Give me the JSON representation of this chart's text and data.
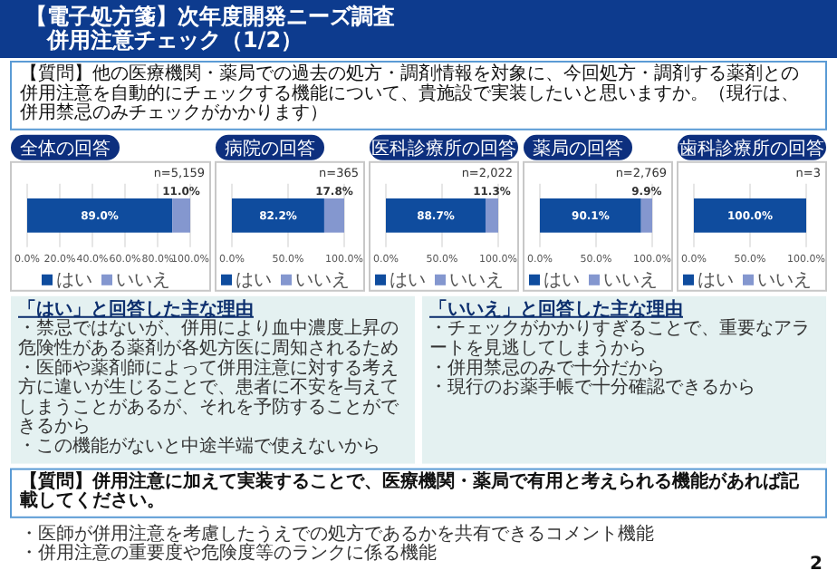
{
  "chart_data": [
    {
      "type": "other",
      "title": "【電子処方箋】次年度開発ニーズ調査",
      "subtitle": "併用注意チェック（1/2）",
      "annotations": [
        "【質問】他の医療機関・薬局での過去の処方・調剤情報を対象に、今回処方・調剤する薬剤との併用注意を自動的にチェックする機能について、貴施設で実装したいと思いますか。（現行は、併用禁忌のみチェックがかかります）"
      ]
    },
    {
      "type": "bar",
      "orientation": "horizontal",
      "stacked": true,
      "title": "全体の回答",
      "subtitle": "n=5,159",
      "categories": [
        null
      ],
      "xlim": [
        0,
        100
      ],
      "xticks": [
        {
          "value": 0,
          "label": "0.0%"
        },
        {
          "value": 20,
          "label": "20.0%"
        },
        {
          "value": 40,
          "label": "40.0%"
        },
        {
          "value": 60,
          "label": "60.0%"
        },
        {
          "value": 80,
          "label": "80.0%"
        },
        {
          "value": 100,
          "label": "100.0%"
        }
      ],
      "grid": "x",
      "legend": "bottom",
      "tick_labels": "x",
      "series": [
        {
          "name": "はい",
          "color": "#0f4c9e",
          "values": [
            89.0
          ],
          "value_labels": [
            "89.0%"
          ]
        },
        {
          "name": "いいえ",
          "color": "#8497cf",
          "values": [
            11.0
          ],
          "value_labels": [
            "11.0%"
          ]
        }
      ]
    },
    {
      "type": "bar",
      "orientation": "horizontal",
      "stacked": true,
      "title": "病院の回答",
      "subtitle": "n=365",
      "categories": [
        null
      ],
      "xlim": [
        0,
        100
      ],
      "xticks": [
        {
          "value": 0,
          "label": "0.0%"
        },
        {
          "value": 50,
          "label": "50.0%"
        },
        {
          "value": 100,
          "label": "100.0%"
        }
      ],
      "grid": "x",
      "legend": "bottom",
      "tick_labels": "x",
      "series": [
        {
          "name": "はい",
          "color": "#0f4c9e",
          "values": [
            82.2
          ],
          "value_labels": [
            "82.2%"
          ]
        },
        {
          "name": "いいえ",
          "color": "#8497cf",
          "values": [
            17.8
          ],
          "value_labels": [
            "17.8%"
          ]
        }
      ]
    },
    {
      "type": "bar",
      "orientation": "horizontal",
      "stacked": true,
      "title": "医科診療所の回答",
      "subtitle": "n=2,022",
      "categories": [
        null
      ],
      "xlim": [
        0,
        100
      ],
      "xticks": [
        {
          "value": 0,
          "label": "0.0%"
        },
        {
          "value": 50,
          "label": "50.0%"
        },
        {
          "value": 100,
          "label": "100.0%"
        }
      ],
      "grid": "x",
      "legend": "bottom",
      "tick_labels": "x",
      "series": [
        {
          "name": "はい",
          "color": "#0f4c9e",
          "values": [
            88.7
          ],
          "value_labels": [
            "88.7%"
          ]
        },
        {
          "name": "いいえ",
          "color": "#8497cf",
          "values": [
            11.3
          ],
          "value_labels": [
            "11.3%"
          ]
        }
      ]
    },
    {
      "type": "bar",
      "orientation": "horizontal",
      "stacked": true,
      "title": "薬局の回答",
      "subtitle": "n=2,769",
      "categories": [
        null
      ],
      "xlim": [
        0,
        100
      ],
      "xticks": [
        {
          "value": 0,
          "label": "0.0%"
        },
        {
          "value": 50,
          "label": "50.0%"
        },
        {
          "value": 100,
          "label": "100.0%"
        }
      ],
      "grid": "x",
      "legend": "bottom",
      "tick_labels": "x",
      "series": [
        {
          "name": "はい",
          "color": "#0f4c9e",
          "values": [
            90.1
          ],
          "value_labels": [
            "90.1%"
          ]
        },
        {
          "name": "いいえ",
          "color": "#8497cf",
          "values": [
            9.9
          ],
          "value_labels": [
            "9.9%"
          ]
        }
      ]
    },
    {
      "type": "bar",
      "orientation": "horizontal",
      "stacked": true,
      "title": "歯科診療所の回答",
      "subtitle": "n=3",
      "categories": [
        null
      ],
      "xlim": [
        0,
        100
      ],
      "xticks": [
        {
          "value": 0,
          "label": "0.0%"
        },
        {
          "value": 50,
          "label": "50.0%"
        },
        {
          "value": 100,
          "label": "100.0%"
        }
      ],
      "grid": "x",
      "legend": "bottom",
      "tick_labels": "x",
      "series": [
        {
          "name": "はい",
          "color": "#0f4c9e",
          "values": [
            100.0
          ],
          "value_labels": [
            "100.0%"
          ]
        },
        {
          "name": "いいえ",
          "color": "#8497cf",
          "values": [
            0
          ],
          "value_labels": [
            null
          ]
        }
      ]
    },
    {
      "type": "other",
      "title": "「はい」と回答した主な理由",
      "annotations": [
        "・禁忌ではないが、併用により血中濃度上昇の危険性がある薬剤が各処方医に周知されるため",
        "・医師や薬剤師によって併用注意に対する考え方に違いが生じることで、患者に不安を与えてしまうことがあるが、それを予防することができるから",
        "・この機能がないと中途半端で使えないから"
      ]
    },
    {
      "type": "other",
      "title": "「いいえ」と回答した主な理由",
      "annotations": [
        "・チェックがかかりすぎることで、重要なアラートを見逃してしまうから",
        "・併用禁忌のみで十分だから",
        "・現行のお薬手帳で十分確認できるから"
      ]
    },
    {
      "type": "other",
      "title": "【質問】併用注意に加えて実装することで、医療機関・薬局で有用と考えられる機能があれば記載してください。",
      "annotations": [
        "・医師が併用注意を考慮したうえでの処方であるかを共有できるコメント機能",
        "・併用注意の重要度や危険度等のランクに係る機能",
        "2"
      ]
    }
  ]
}
